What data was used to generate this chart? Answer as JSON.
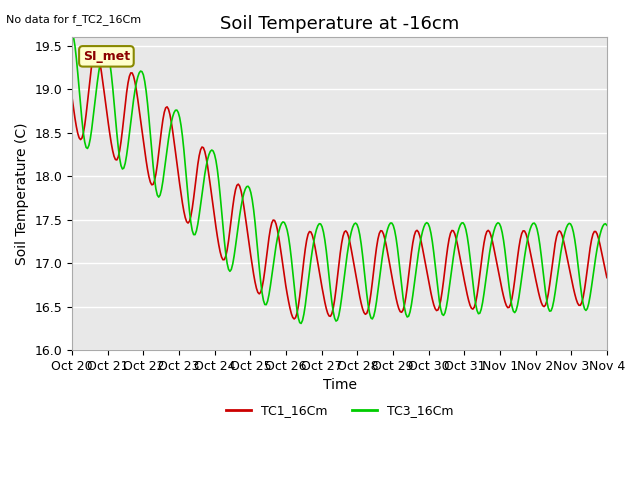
{
  "title": "Soil Temperature at -16cm",
  "no_data_text": "No data for f_TC2_16Cm",
  "ylabel": "Soil Temperature (C)",
  "xlabel": "Time",
  "ylim": [
    16.0,
    19.6
  ],
  "yticks": [
    16.0,
    16.5,
    17.0,
    17.5,
    18.0,
    18.5,
    19.0,
    19.5
  ],
  "xtick_labels": [
    "Oct 20",
    "Oct 21",
    "Oct 22",
    "Oct 23",
    "Oct 24",
    "Oct 25",
    "Oct 26",
    "Oct 27",
    "Oct 28",
    "Oct 29",
    "Oct 30",
    "Oct 31",
    "Nov 1",
    "Nov 2",
    "Nov 3",
    "Nov 4"
  ],
  "line1_color": "#cc0000",
  "line2_color": "#00cc00",
  "legend1": "TC1_16Cm",
  "legend2": "TC3_16Cm",
  "annotation_text": "SI_met",
  "annotation_bg": "#ffffcc",
  "annotation_border": "#888800",
  "background_color": "#e8e8e8",
  "title_fontsize": 13,
  "axis_fontsize": 10,
  "tick_fontsize": 9
}
